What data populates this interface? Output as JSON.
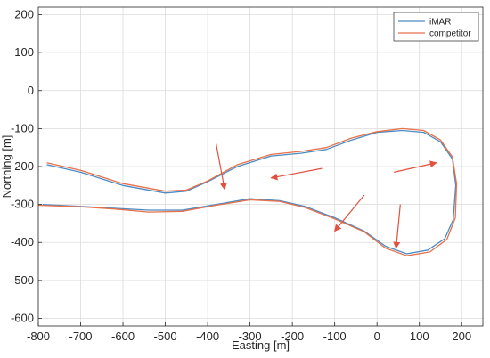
{
  "chart_data": {
    "type": "line",
    "xlabel": "Easting [m]",
    "ylabel": "Northing [m]",
    "xlim": [
      -800,
      250
    ],
    "ylim": [
      -620,
      220
    ],
    "xticks": [
      -800,
      -700,
      -600,
      -500,
      -400,
      -300,
      -200,
      -100,
      0,
      100,
      200
    ],
    "yticks": [
      200,
      100,
      0,
      -100,
      -200,
      -300,
      -400,
      -500,
      -600
    ],
    "grid": true,
    "legend_position": "top-right",
    "colors": {
      "iMAR": "#4a8cc4",
      "competitor": "#e8714a",
      "trajectory_dark": "#7a4e56",
      "arrow": "#e2513f"
    },
    "series": [
      {
        "name": "iMAR",
        "x": [
          -780,
          -700,
          -600,
          -500,
          -450,
          -400,
          -330,
          -250,
          -180,
          -120,
          -60,
          0,
          60,
          110,
          150,
          178,
          186,
          180,
          160,
          120,
          70,
          20,
          -30,
          -100,
          -170,
          -230,
          -300,
          -380,
          -460,
          -540,
          -620,
          -700,
          -790
        ],
        "y": [
          -195,
          -215,
          -250,
          -270,
          -265,
          -240,
          -200,
          -172,
          -165,
          -155,
          -130,
          -110,
          -105,
          -110,
          -135,
          -180,
          -250,
          -340,
          -390,
          -420,
          -430,
          -410,
          -370,
          -335,
          -305,
          -290,
          -285,
          -300,
          -315,
          -315,
          -310,
          -305,
          -300
        ]
      },
      {
        "name": "competitor",
        "x": [
          -780,
          -700,
          -600,
          -500,
          -450,
          -400,
          -330,
          -250,
          -180,
          -120,
          -60,
          0,
          60,
          110,
          150,
          178,
          188,
          185,
          165,
          125,
          70,
          20,
          -30,
          -100,
          -170,
          -230,
          -300,
          -380,
          -460,
          -540,
          -620,
          -700,
          -800
        ],
        "y": [
          -190,
          -210,
          -245,
          -265,
          -262,
          -238,
          -195,
          -168,
          -160,
          -150,
          -125,
          -108,
          -100,
          -105,
          -130,
          -175,
          -245,
          -335,
          -392,
          -425,
          -435,
          -415,
          -372,
          -338,
          -308,
          -292,
          -288,
          -302,
          -318,
          -320,
          -312,
          -306,
          -302
        ]
      }
    ],
    "annotations": [
      {
        "type": "arrow",
        "from": [
          -380,
          -140
        ],
        "to": [
          -360,
          -260
        ]
      },
      {
        "type": "arrow",
        "from": [
          -130,
          -205
        ],
        "to": [
          -250,
          -230
        ]
      },
      {
        "type": "arrow",
        "from": [
          -30,
          -275
        ],
        "to": [
          -100,
          -370
        ]
      },
      {
        "type": "arrow",
        "from": [
          40,
          -215
        ],
        "to": [
          140,
          -190
        ]
      },
      {
        "type": "arrow",
        "from": [
          55,
          -300
        ],
        "to": [
          45,
          -415
        ]
      }
    ]
  }
}
